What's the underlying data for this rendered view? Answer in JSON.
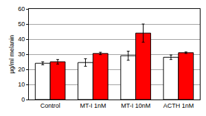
{
  "chart_data": {
    "type": "bar",
    "y_label": "µg/ml melanin",
    "categories": [
      "Control",
      "MT-I 1nM",
      "MT-I 10nM",
      "ACTH 1nM"
    ],
    "series": [
      {
        "color": "#ffffff",
        "values": [
          24,
          24.5,
          29,
          28
        ],
        "errors": [
          1,
          2.5,
          3,
          1.5
        ]
      },
      {
        "color": "#ff0000",
        "values": [
          25,
          30.5,
          44,
          31
        ],
        "errors": [
          1.5,
          0.8,
          6,
          0.5
        ]
      }
    ],
    "ylim": [
      0,
      60
    ],
    "yticks": [
      0,
      10,
      20,
      30,
      40,
      50,
      60
    ],
    "grid": true
  }
}
